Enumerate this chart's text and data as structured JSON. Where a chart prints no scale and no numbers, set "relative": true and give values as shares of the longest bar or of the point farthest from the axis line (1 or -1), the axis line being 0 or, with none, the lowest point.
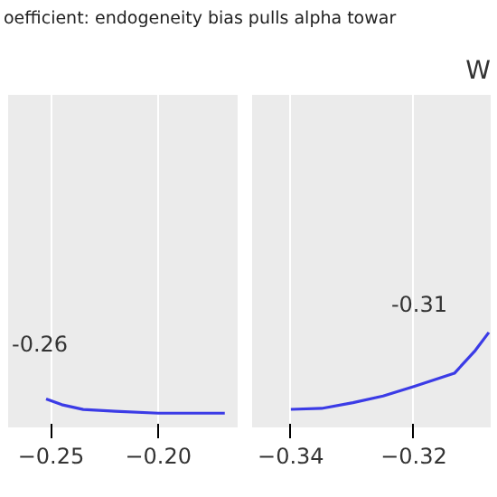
{
  "chart_data": [
    {
      "type": "line",
      "title": "oefficient: endogeneity bias pulls alpha towar",
      "relative": true,
      "x": [
        -0.2523,
        -0.245,
        -0.235,
        -0.22,
        -0.2,
        -0.185,
        -0.169
      ],
      "xlim": [
        -0.27,
        -0.163
      ],
      "xticks": [
        {
          "value": -0.25,
          "label": "−0.25"
        },
        {
          "value": -0.2,
          "label": "−0.20"
        }
      ],
      "grid": "x",
      "tick_labels": "x",
      "series": [
        {
          "color": "#3b3be6",
          "values": [
            1,
            0.8,
            0.63,
            0.57,
            0.5,
            0.5,
            0.5
          ]
        }
      ],
      "annotations": [
        "-0.26"
      ]
    },
    {
      "type": "line",
      "title": "W",
      "relative": true,
      "x": [
        -0.34,
        -0.335,
        -0.3299,
        -0.325,
        -0.32,
        -0.3134,
        -0.31,
        -0.3078
      ],
      "xlim": [
        -0.3463,
        -0.3075
      ],
      "xticks": [
        {
          "value": -0.34,
          "label": "−0.34"
        },
        {
          "value": -0.32,
          "label": "−0.32"
        }
      ],
      "grid": "x",
      "tick_labels": "x",
      "series": [
        {
          "color": "#3b3be6",
          "values": [
            0.19,
            0.2,
            0.26,
            0.33,
            0.43,
            0.57,
            0.81,
            1
          ]
        }
      ],
      "annotations": [
        "-0.31"
      ]
    }
  ]
}
